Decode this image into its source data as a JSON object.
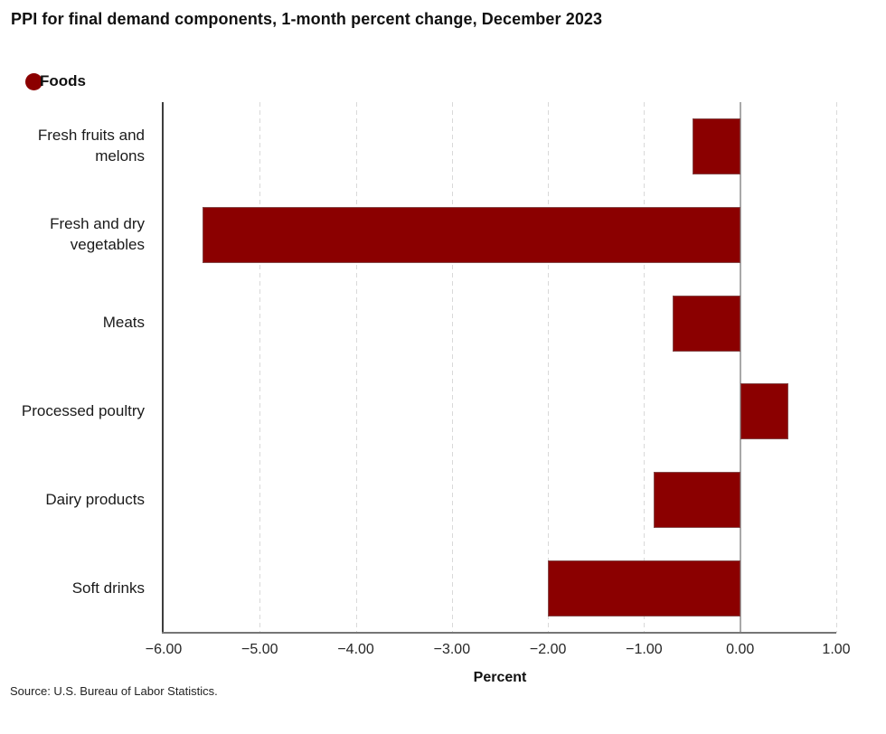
{
  "title": "PPI for final demand components, 1-month percent change, December 2023",
  "legend": {
    "label": "Foods",
    "marker_color": "#8b0000"
  },
  "source": "Source: U.S. Bureau of Labor Statistics.",
  "chart_data": {
    "type": "bar",
    "orientation": "horizontal",
    "title": "PPI for final demand components, 1-month percent change, December 2023",
    "series_name": "Foods",
    "categories": [
      "Fresh fruits and melons",
      "Fresh and dry vegetables",
      "Meats",
      "Processed poultry",
      "Dairy products",
      "Soft drinks"
    ],
    "values": [
      -0.5,
      -5.6,
      -0.7,
      0.5,
      -0.9,
      -2.0
    ],
    "bar_color": "#8b0000",
    "xlabel": "Percent",
    "ylabel": "",
    "xlim": [
      -6.0,
      1.0
    ],
    "x_tick_values": [
      -6,
      -5,
      -4,
      -3,
      -2,
      -1,
      0,
      1
    ],
    "x_ticks": [
      "−6.00",
      "−5.00",
      "−4.00",
      "−3.00",
      "−2.00",
      "−1.00",
      "0.00",
      "1.00"
    ],
    "grid": "vertical-dashed",
    "zero_line": "solid",
    "legend_position": "top-left"
  }
}
